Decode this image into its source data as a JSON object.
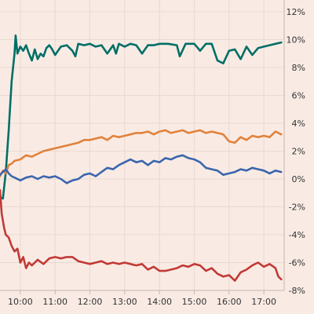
{
  "chart_data": {
    "type": "line",
    "title": "",
    "xlabel": "",
    "ylabel": "",
    "x_range": [
      "09:25",
      "17:35"
    ],
    "ylim": [
      -8,
      12
    ],
    "y_axis_position": "right",
    "grid": true,
    "legend": "none",
    "x_ticks": [
      "10:00",
      "11:00",
      "12:00",
      "13:00",
      "14:00",
      "15:00",
      "16:00",
      "17:00"
    ],
    "y_ticks": [
      {
        "value": 12,
        "label": "12%"
      },
      {
        "value": 10,
        "label": "10%"
      },
      {
        "value": 8,
        "label": "8%"
      },
      {
        "value": 6,
        "label": "6%"
      },
      {
        "value": 4,
        "label": "4%"
      },
      {
        "value": 2,
        "label": "2%"
      },
      {
        "value": 0,
        "label": "0%"
      },
      {
        "value": -2,
        "label": "-2%"
      },
      {
        "value": -4,
        "label": "-4%"
      },
      {
        "value": -6,
        "label": "-6%"
      },
      {
        "value": -8,
        "label": "-8%"
      }
    ],
    "series": [
      {
        "color": "#006f67",
        "points": [
          [
            "09:25",
            -1.3
          ],
          [
            "09:30",
            -1.4
          ],
          [
            "09:35",
            0.5
          ],
          [
            "09:40",
            3.5
          ],
          [
            "09:45",
            7.0
          ],
          [
            "09:50",
            9.0
          ],
          [
            "09:52",
            10.3
          ],
          [
            "09:55",
            9.0
          ],
          [
            "10:00",
            9.5
          ],
          [
            "10:05",
            9.2
          ],
          [
            "10:10",
            9.6
          ],
          [
            "10:15",
            9.0
          ],
          [
            "10:20",
            8.5
          ],
          [
            "10:25",
            9.3
          ],
          [
            "10:30",
            8.6
          ],
          [
            "10:35",
            9.0
          ],
          [
            "10:40",
            8.8
          ],
          [
            "10:45",
            9.4
          ],
          [
            "10:50",
            9.6
          ],
          [
            "10:55",
            9.3
          ],
          [
            "11:00",
            8.9
          ],
          [
            "11:10",
            9.5
          ],
          [
            "11:20",
            9.6
          ],
          [
            "11:30",
            9.2
          ],
          [
            "11:35",
            8.8
          ],
          [
            "11:40",
            9.7
          ],
          [
            "11:50",
            9.6
          ],
          [
            "12:00",
            9.7
          ],
          [
            "12:10",
            9.5
          ],
          [
            "12:20",
            9.6
          ],
          [
            "12:30",
            9.0
          ],
          [
            "12:40",
            9.6
          ],
          [
            "12:45",
            9.0
          ],
          [
            "12:50",
            9.7
          ],
          [
            "13:00",
            9.5
          ],
          [
            "13:10",
            9.7
          ],
          [
            "13:20",
            9.6
          ],
          [
            "13:30",
            9.0
          ],
          [
            "13:40",
            9.6
          ],
          [
            "13:50",
            9.6
          ],
          [
            "14:00",
            9.7
          ],
          [
            "14:15",
            9.7
          ],
          [
            "14:30",
            9.6
          ],
          [
            "14:35",
            8.8
          ],
          [
            "14:45",
            9.7
          ],
          [
            "15:00",
            9.7
          ],
          [
            "15:10",
            9.2
          ],
          [
            "15:20",
            9.7
          ],
          [
            "15:30",
            9.7
          ],
          [
            "15:40",
            8.5
          ],
          [
            "15:50",
            8.3
          ],
          [
            "16:00",
            9.2
          ],
          [
            "16:10",
            9.3
          ],
          [
            "16:20",
            8.6
          ],
          [
            "16:30",
            9.5
          ],
          [
            "16:40",
            8.9
          ],
          [
            "16:50",
            9.4
          ],
          [
            "17:00",
            9.5
          ],
          [
            "17:10",
            9.6
          ],
          [
            "17:20",
            9.7
          ],
          [
            "17:30",
            9.8
          ]
        ]
      },
      {
        "color": "#e1823b",
        "points": [
          [
            "09:25",
            0.2
          ],
          [
            "09:30",
            0.6
          ],
          [
            "09:35",
            0.4
          ],
          [
            "09:40",
            1.0
          ],
          [
            "09:45",
            1.1
          ],
          [
            "09:50",
            1.3
          ],
          [
            "10:00",
            1.4
          ],
          [
            "10:10",
            1.7
          ],
          [
            "10:20",
            1.6
          ],
          [
            "10:30",
            1.8
          ],
          [
            "10:40",
            2.0
          ],
          [
            "10:50",
            2.1
          ],
          [
            "11:00",
            2.2
          ],
          [
            "11:10",
            2.3
          ],
          [
            "11:20",
            2.4
          ],
          [
            "11:30",
            2.5
          ],
          [
            "11:40",
            2.6
          ],
          [
            "11:50",
            2.8
          ],
          [
            "12:00",
            2.8
          ],
          [
            "12:10",
            2.9
          ],
          [
            "12:20",
            3.0
          ],
          [
            "12:30",
            2.8
          ],
          [
            "12:40",
            3.1
          ],
          [
            "12:50",
            3.0
          ],
          [
            "13:00",
            3.1
          ],
          [
            "13:10",
            3.2
          ],
          [
            "13:20",
            3.3
          ],
          [
            "13:30",
            3.3
          ],
          [
            "13:40",
            3.4
          ],
          [
            "13:50",
            3.2
          ],
          [
            "14:00",
            3.4
          ],
          [
            "14:10",
            3.5
          ],
          [
            "14:20",
            3.3
          ],
          [
            "14:30",
            3.4
          ],
          [
            "14:40",
            3.5
          ],
          [
            "14:50",
            3.3
          ],
          [
            "15:00",
            3.4
          ],
          [
            "15:10",
            3.5
          ],
          [
            "15:20",
            3.3
          ],
          [
            "15:30",
            3.4
          ],
          [
            "15:40",
            3.3
          ],
          [
            "15:50",
            3.2
          ],
          [
            "16:00",
            2.7
          ],
          [
            "16:10",
            2.6
          ],
          [
            "16:20",
            3.0
          ],
          [
            "16:30",
            2.8
          ],
          [
            "16:40",
            3.1
          ],
          [
            "16:50",
            3.0
          ],
          [
            "17:00",
            3.1
          ],
          [
            "17:10",
            3.0
          ],
          [
            "17:20",
            3.4
          ],
          [
            "17:30",
            3.2
          ]
        ]
      },
      {
        "color": "#3b66ad",
        "points": [
          [
            "09:25",
            0.3
          ],
          [
            "09:30",
            0.5
          ],
          [
            "09:35",
            0.7
          ],
          [
            "09:40",
            0.4
          ],
          [
            "09:45",
            0.2
          ],
          [
            "09:50",
            0.1
          ],
          [
            "10:00",
            -0.1
          ],
          [
            "10:10",
            0.1
          ],
          [
            "10:20",
            0.2
          ],
          [
            "10:30",
            0.0
          ],
          [
            "10:40",
            0.2
          ],
          [
            "10:50",
            0.1
          ],
          [
            "11:00",
            0.2
          ],
          [
            "11:10",
            0.0
          ],
          [
            "11:20",
            -0.3
          ],
          [
            "11:30",
            -0.1
          ],
          [
            "11:40",
            0.0
          ],
          [
            "11:50",
            0.3
          ],
          [
            "12:00",
            0.4
          ],
          [
            "12:10",
            0.2
          ],
          [
            "12:20",
            0.5
          ],
          [
            "12:30",
            0.8
          ],
          [
            "12:40",
            0.7
          ],
          [
            "12:50",
            1.0
          ],
          [
            "13:00",
            1.2
          ],
          [
            "13:10",
            1.4
          ],
          [
            "13:20",
            1.2
          ],
          [
            "13:30",
            1.3
          ],
          [
            "13:40",
            1.0
          ],
          [
            "13:50",
            1.3
          ],
          [
            "14:00",
            1.2
          ],
          [
            "14:10",
            1.5
          ],
          [
            "14:20",
            1.4
          ],
          [
            "14:30",
            1.6
          ],
          [
            "14:40",
            1.7
          ],
          [
            "14:50",
            1.5
          ],
          [
            "15:00",
            1.4
          ],
          [
            "15:10",
            1.2
          ],
          [
            "15:20",
            0.8
          ],
          [
            "15:30",
            0.7
          ],
          [
            "15:40",
            0.6
          ],
          [
            "15:50",
            0.3
          ],
          [
            "16:00",
            0.4
          ],
          [
            "16:10",
            0.5
          ],
          [
            "16:20",
            0.7
          ],
          [
            "16:30",
            0.6
          ],
          [
            "16:40",
            0.8
          ],
          [
            "16:50",
            0.7
          ],
          [
            "17:00",
            0.6
          ],
          [
            "17:10",
            0.4
          ],
          [
            "17:20",
            0.6
          ],
          [
            "17:30",
            0.5
          ]
        ]
      },
      {
        "color": "#c13a36",
        "points": [
          [
            "09:25",
            -0.8
          ],
          [
            "09:28",
            -2.5
          ],
          [
            "09:32",
            -3.5
          ],
          [
            "09:35",
            -4.0
          ],
          [
            "09:40",
            -4.2
          ],
          [
            "09:45",
            -4.8
          ],
          [
            "09:50",
            -5.2
          ],
          [
            "09:55",
            -5.0
          ],
          [
            "10:00",
            -6.0
          ],
          [
            "10:05",
            -5.6
          ],
          [
            "10:10",
            -6.4
          ],
          [
            "10:15",
            -6.0
          ],
          [
            "10:20",
            -6.2
          ],
          [
            "10:30",
            -5.8
          ],
          [
            "10:40",
            -6.1
          ],
          [
            "10:50",
            -5.7
          ],
          [
            "11:00",
            -5.6
          ],
          [
            "11:10",
            -5.7
          ],
          [
            "11:20",
            -5.6
          ],
          [
            "11:30",
            -5.6
          ],
          [
            "11:40",
            -5.9
          ],
          [
            "11:50",
            -6.0
          ],
          [
            "12:00",
            -6.1
          ],
          [
            "12:10",
            -6.0
          ],
          [
            "12:20",
            -5.9
          ],
          [
            "12:30",
            -6.1
          ],
          [
            "12:40",
            -6.0
          ],
          [
            "12:50",
            -6.1
          ],
          [
            "13:00",
            -6.0
          ],
          [
            "13:10",
            -6.1
          ],
          [
            "13:20",
            -6.2
          ],
          [
            "13:30",
            -6.1
          ],
          [
            "13:40",
            -6.5
          ],
          [
            "13:50",
            -6.3
          ],
          [
            "14:00",
            -6.6
          ],
          [
            "14:10",
            -6.6
          ],
          [
            "14:20",
            -6.5
          ],
          [
            "14:30",
            -6.4
          ],
          [
            "14:40",
            -6.2
          ],
          [
            "14:50",
            -6.3
          ],
          [
            "15:00",
            -6.1
          ],
          [
            "15:10",
            -6.2
          ],
          [
            "15:20",
            -6.6
          ],
          [
            "15:30",
            -6.4
          ],
          [
            "15:40",
            -6.8
          ],
          [
            "15:50",
            -7.0
          ],
          [
            "16:00",
            -6.9
          ],
          [
            "16:10",
            -7.3
          ],
          [
            "16:20",
            -6.7
          ],
          [
            "16:30",
            -6.5
          ],
          [
            "16:40",
            -6.2
          ],
          [
            "16:50",
            -6.0
          ],
          [
            "17:00",
            -6.3
          ],
          [
            "17:10",
            -6.1
          ],
          [
            "17:20",
            -6.4
          ],
          [
            "17:25",
            -7.0
          ],
          [
            "17:30",
            -7.2
          ]
        ]
      }
    ]
  }
}
